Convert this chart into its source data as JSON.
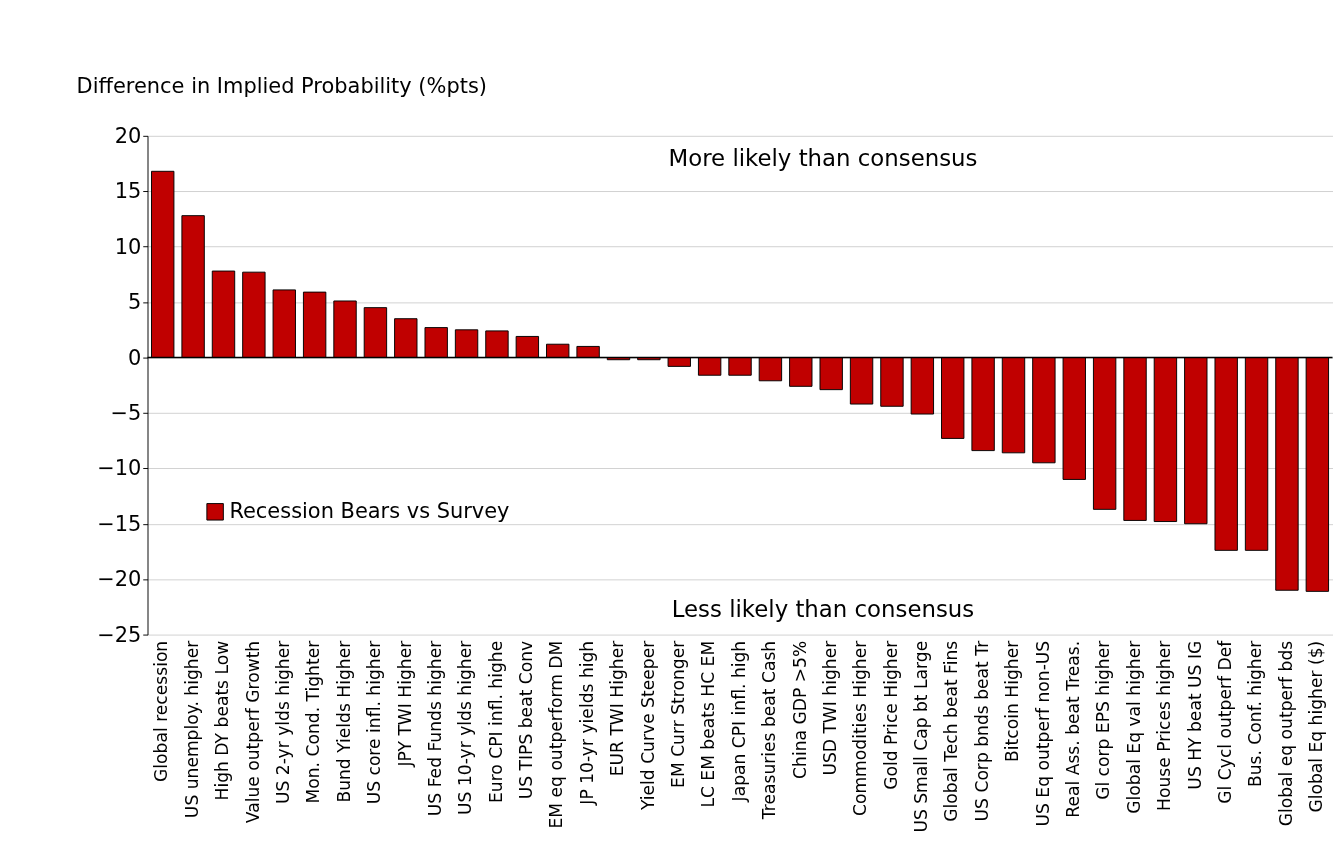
{
  "chart_data": {
    "type": "bar",
    "ylabel": "Difference in Implied Probability (%pts)",
    "categories": [
      "Global recession",
      "US unemploy. higher",
      "High DY beats Low",
      "Value outperf Growth",
      "US 2-yr ylds higher",
      "Mon. Cond. Tighter",
      "Bund Yields Higher",
      "US core infl. higher",
      "JPY TWI Higher",
      "US Fed Funds higher",
      "US 10-yr ylds higher",
      "Euro CPI infl. highe",
      "US TIPS beat Conv",
      "EM eq outperform DM",
      "JP 10-yr yields high",
      "EUR TWI Higher",
      "Yield Curve Steeper",
      "EM Curr Stronger",
      "LC EM beats HC EM",
      "Japan CPI infl. high",
      "Treasuries beat Cash",
      "China GDP >5%",
      "USD TWI higher",
      "Commodities Higher",
      "Gold Price Higher",
      "US Small Cap bt Large",
      "Global Tech beat Fins",
      "US Corp bnds beat Tr",
      "Bitcoin Higher",
      "US Eq outperf non-US",
      "Real Ass. beat Treas.",
      "Gl corp EPS higher",
      "Global Eq val higher",
      "House Prices higher",
      "US HY beat US IG",
      "Gl Cycl outperf Def",
      "Bus. Conf. higher",
      "Global eq outperf bds",
      "Global Eq higher ($)"
    ],
    "series": [
      {
        "name": "Recession Bears vs Survey",
        "color": "#c00000",
        "values": [
          16.8,
          12.8,
          7.8,
          7.7,
          6.1,
          5.9,
          5.1,
          4.5,
          3.5,
          2.7,
          2.5,
          2.4,
          1.9,
          1.2,
          1.0,
          -0.2,
          -0.2,
          -0.8,
          -1.6,
          -1.6,
          -2.1,
          -2.6,
          -2.9,
          -4.2,
          -4.4,
          -5.1,
          -7.3,
          -8.4,
          -8.6,
          -9.5,
          -11.0,
          -13.7,
          -14.7,
          -14.8,
          -15.0,
          -17.4,
          -17.4,
          -21.0,
          -21.1
        ]
      }
    ],
    "ylim": [
      -25,
      20
    ],
    "yticks": [
      -25,
      -20,
      -15,
      -10,
      -5,
      0,
      5,
      10,
      15,
      20
    ],
    "grid": "y",
    "legend": "bottom left",
    "annotations": [
      "More likely than consensus",
      "Less likely than consensus"
    ]
  }
}
